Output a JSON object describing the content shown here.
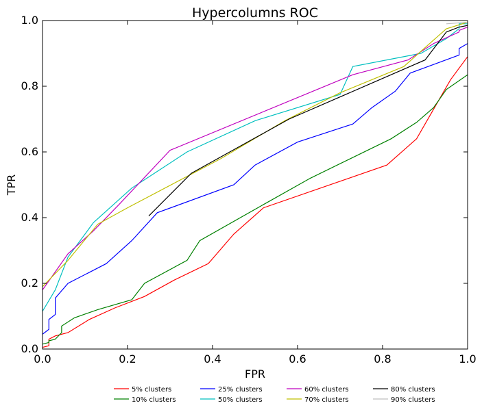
{
  "chart_data": {
    "type": "line",
    "title": "Hypercolumns ROC",
    "xlabel": "FPR",
    "ylabel": "TPR",
    "xlim": [
      0.0,
      1.0
    ],
    "ylim": [
      0.0,
      1.0
    ],
    "x_ticks": [
      "0.0",
      "0.2",
      "0.4",
      "0.6",
      "0.8",
      "1.0"
    ],
    "y_ticks": [
      "0.0",
      "0.2",
      "0.4",
      "0.6",
      "0.8",
      "1.0"
    ],
    "grid": false,
    "legend_position": "bottom-center",
    "series": [
      {
        "name": "5% clusters",
        "color": "#ff0000",
        "points": [
          [
            0,
            0.005
          ],
          [
            0.015,
            0.01
          ],
          [
            0.015,
            0.03
          ],
          [
            0.03,
            0.04
          ],
          [
            0.06,
            0.05
          ],
          [
            0.11,
            0.09
          ],
          [
            0.17,
            0.125
          ],
          [
            0.24,
            0.16
          ],
          [
            0.31,
            0.21
          ],
          [
            0.39,
            0.26
          ],
          [
            0.45,
            0.35
          ],
          [
            0.52,
            0.43
          ],
          [
            0.81,
            0.56
          ],
          [
            0.88,
            0.64
          ],
          [
            0.92,
            0.73
          ],
          [
            0.96,
            0.82
          ],
          [
            1.0,
            0.89
          ]
        ]
      },
      {
        "name": "10% clusters",
        "color": "#008000",
        "points": [
          [
            0,
            0.015
          ],
          [
            0.015,
            0.02
          ],
          [
            0.015,
            0.025
          ],
          [
            0.03,
            0.03
          ],
          [
            0.045,
            0.05
          ],
          [
            0.045,
            0.07
          ],
          [
            0.075,
            0.095
          ],
          [
            0.13,
            0.12
          ],
          [
            0.21,
            0.15
          ],
          [
            0.24,
            0.2
          ],
          [
            0.34,
            0.27
          ],
          [
            0.37,
            0.33
          ],
          [
            0.52,
            0.44
          ],
          [
            0.63,
            0.52
          ],
          [
            0.82,
            0.64
          ],
          [
            0.88,
            0.69
          ],
          [
            0.92,
            0.735
          ],
          [
            0.95,
            0.79
          ],
          [
            1.0,
            0.835
          ]
        ]
      },
      {
        "name": "25% clusters",
        "color": "#0000ff",
        "points": [
          [
            0,
            0.045
          ],
          [
            0.015,
            0.06
          ],
          [
            0.015,
            0.09
          ],
          [
            0.03,
            0.105
          ],
          [
            0.03,
            0.155
          ],
          [
            0.06,
            0.2
          ],
          [
            0.15,
            0.26
          ],
          [
            0.21,
            0.33
          ],
          [
            0.27,
            0.415
          ],
          [
            0.45,
            0.5
          ],
          [
            0.5,
            0.56
          ],
          [
            0.6,
            0.63
          ],
          [
            0.73,
            0.685
          ],
          [
            0.775,
            0.735
          ],
          [
            0.83,
            0.785
          ],
          [
            0.865,
            0.84
          ],
          [
            0.98,
            0.895
          ],
          [
            0.98,
            0.915
          ],
          [
            1.0,
            0.93
          ]
        ]
      },
      {
        "name": "50% clusters",
        "color": "#00bfbf",
        "points": [
          [
            0,
            0.115
          ],
          [
            0.03,
            0.18
          ],
          [
            0.06,
            0.28
          ],
          [
            0.12,
            0.385
          ],
          [
            0.21,
            0.49
          ],
          [
            0.34,
            0.6
          ],
          [
            0.5,
            0.695
          ],
          [
            0.7,
            0.775
          ],
          [
            0.73,
            0.86
          ],
          [
            0.89,
            0.9
          ],
          [
            0.95,
            0.945
          ],
          [
            0.98,
            0.975
          ],
          [
            0.98,
            0.99
          ],
          [
            1.0,
            0.99
          ]
        ]
      },
      {
        "name": "60% clusters",
        "color": "#bf00bf",
        "points": [
          [
            0,
            0.18
          ],
          [
            0.06,
            0.29
          ],
          [
            0.12,
            0.36
          ],
          [
            0.18,
            0.44
          ],
          [
            0.3,
            0.605
          ],
          [
            0.73,
            0.835
          ],
          [
            0.86,
            0.88
          ],
          [
            0.92,
            0.93
          ],
          [
            0.98,
            0.965
          ],
          [
            0.98,
            0.97
          ],
          [
            1.0,
            0.98
          ]
        ]
      },
      {
        "name": "70% clusters",
        "color": "#bfbf00",
        "points": [
          [
            0,
            0.19
          ],
          [
            0.06,
            0.27
          ],
          [
            0.13,
            0.38
          ],
          [
            0.2,
            0.43
          ],
          [
            0.42,
            0.58
          ],
          [
            0.57,
            0.695
          ],
          [
            0.7,
            0.78
          ],
          [
            0.85,
            0.86
          ],
          [
            0.95,
            0.975
          ],
          [
            1.0,
            0.995
          ]
        ]
      },
      {
        "name": "80% clusters",
        "color": "#000000",
        "points": [
          [
            0.25,
            0.405
          ],
          [
            0.35,
            0.535
          ],
          [
            0.58,
            0.7
          ],
          [
            0.9,
            0.88
          ],
          [
            0.95,
            0.965
          ],
          [
            0.98,
            0.98
          ],
          [
            1.0,
            0.985
          ]
        ]
      },
      {
        "name": "90% clusters",
        "color": "#bfbfbf",
        "points": [
          [
            0.95,
            0.99
          ],
          [
            1.0,
            0.995
          ]
        ]
      }
    ]
  }
}
